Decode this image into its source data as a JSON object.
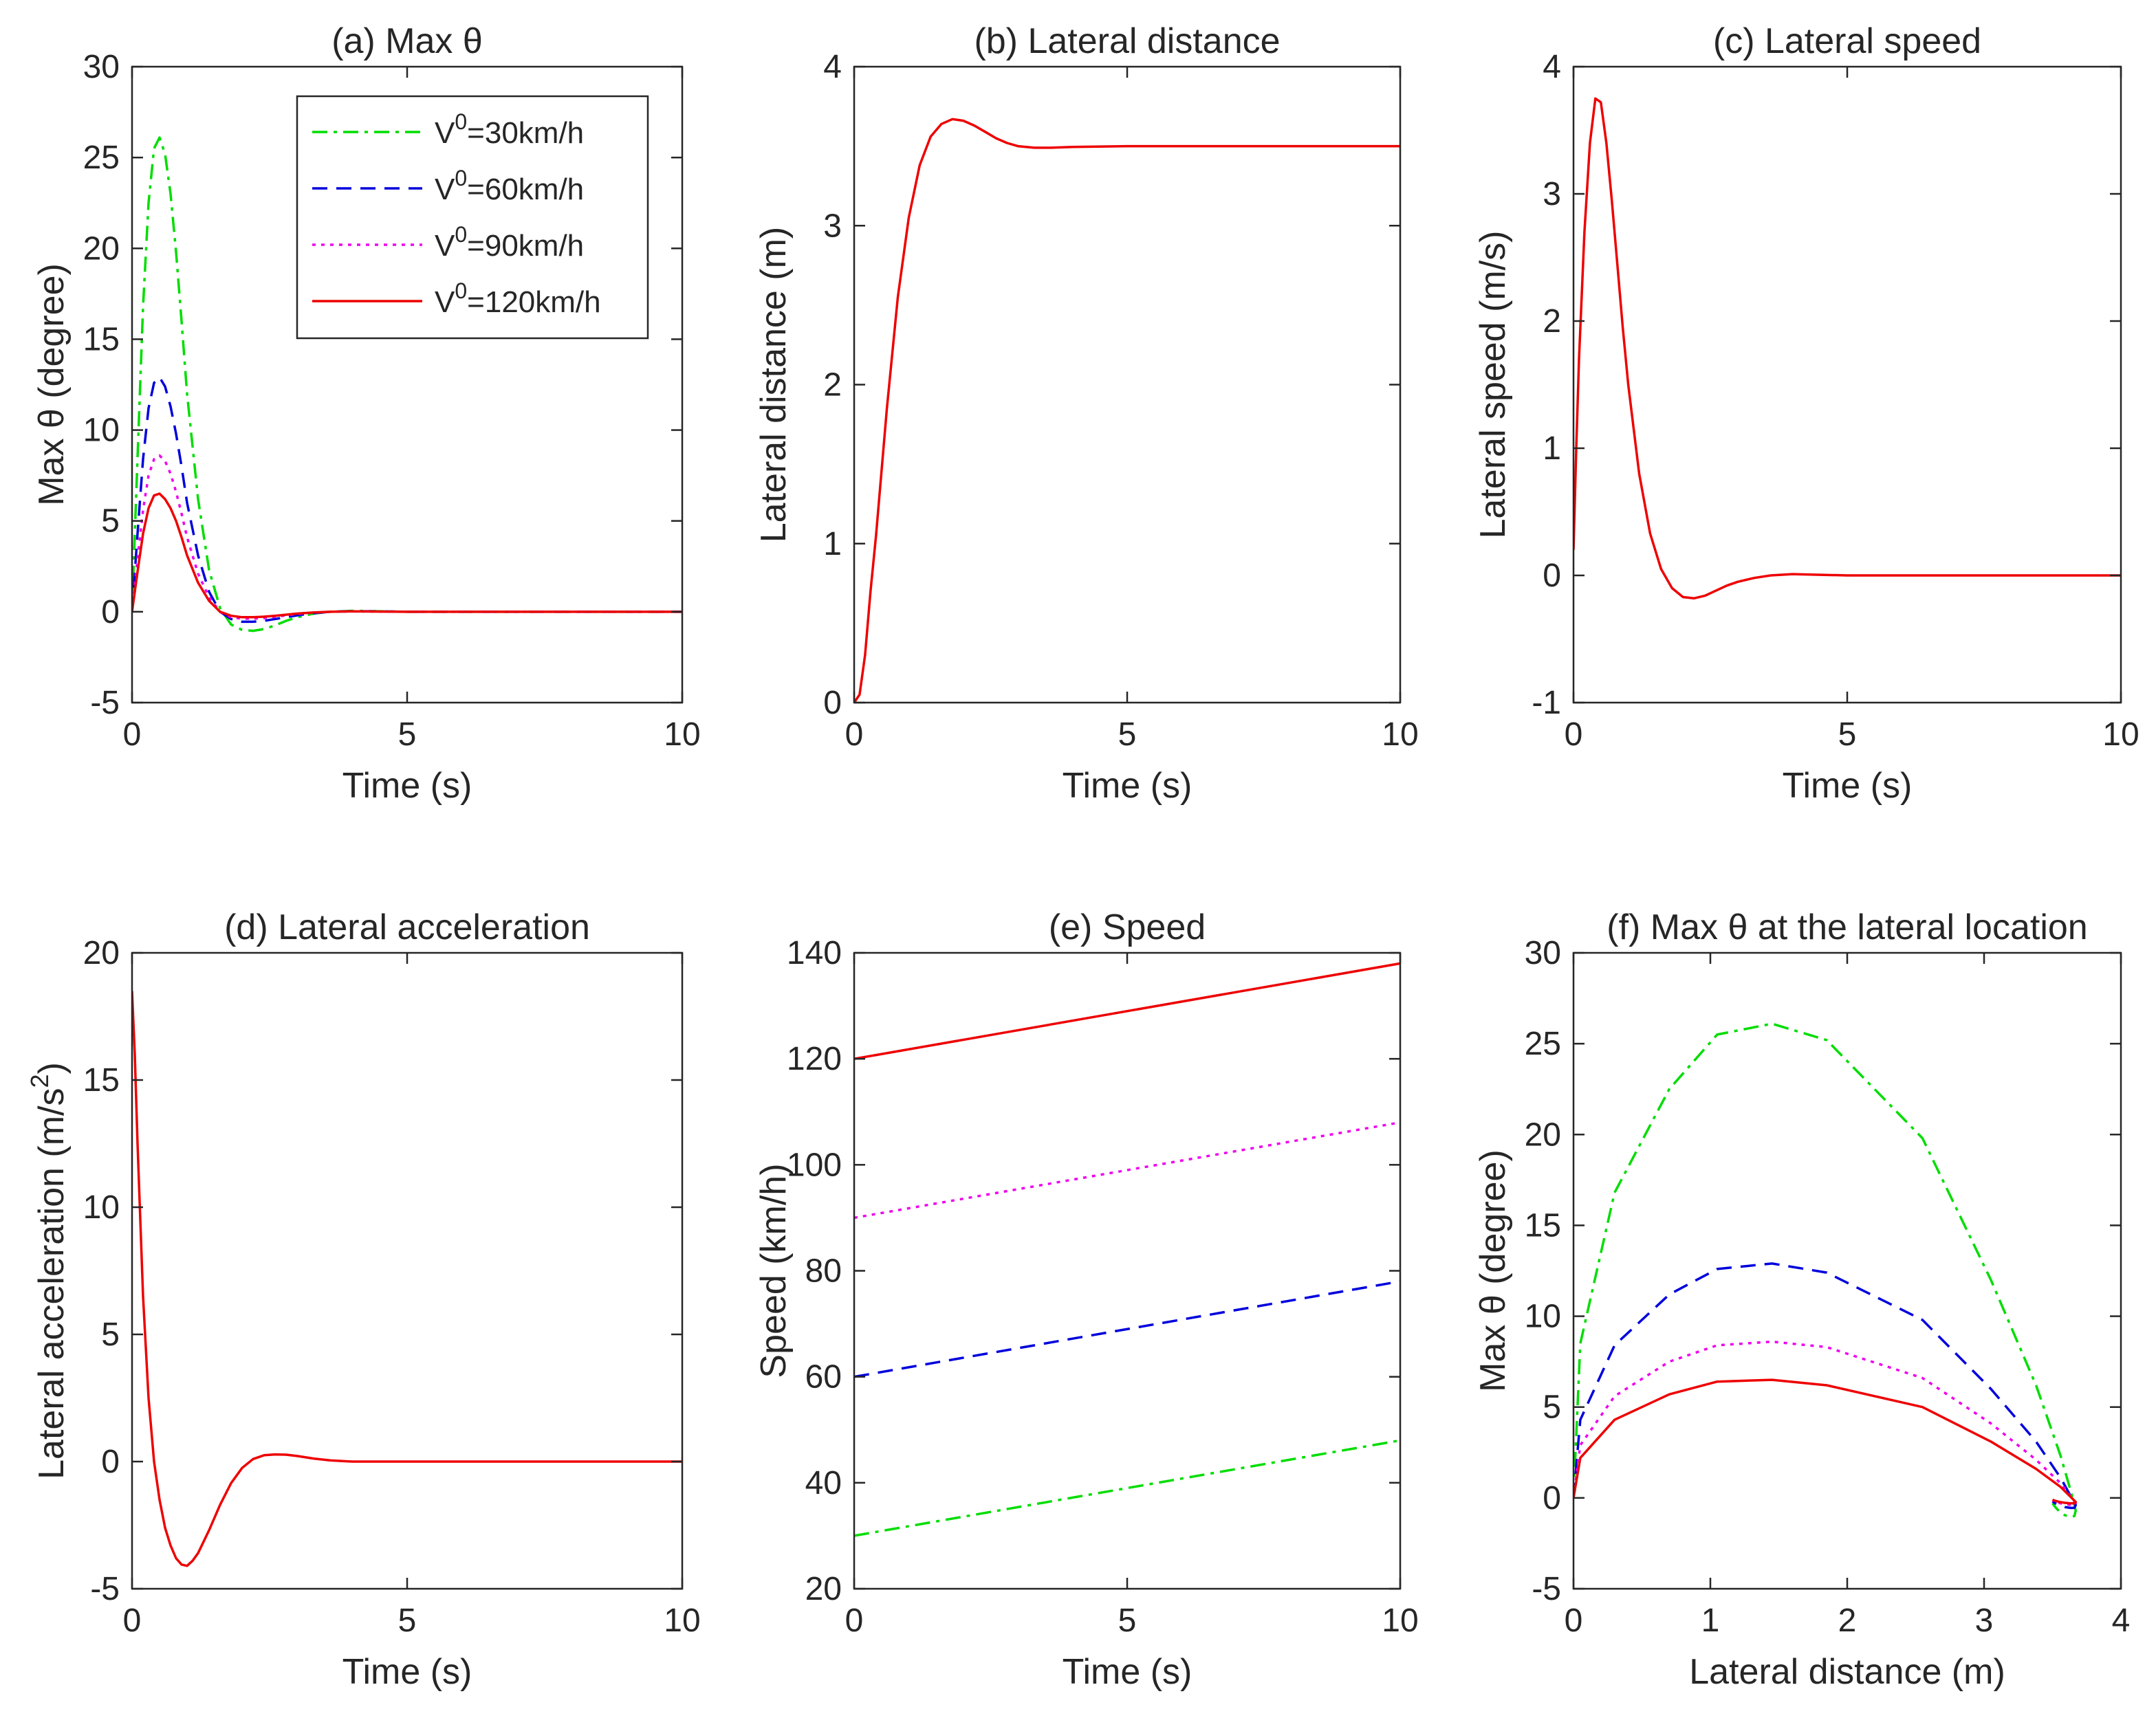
{
  "colors": {
    "v30": "#00dd00",
    "v60": "#0000dd",
    "v90": "#ee00ee",
    "v120": "#ee0000",
    "axes": "#262626"
  },
  "legend": {
    "entries": [
      {
        "series": "v30",
        "prefix": "V",
        "sup": "0",
        "suffix": "=30km/h"
      },
      {
        "series": "v60",
        "prefix": "V",
        "sup": "0",
        "suffix": "=60km/h"
      },
      {
        "series": "v90",
        "prefix": "V",
        "sup": "0",
        "suffix": "=90km/h"
      },
      {
        "series": "v120",
        "prefix": "V",
        "sup": "0",
        "suffix": "=120km/h"
      }
    ]
  },
  "chart_data": [
    {
      "id": "a",
      "type": "line",
      "title": "(a) Max θ",
      "xlabel": "Time (s)",
      "ylabel": "Max θ (degree)",
      "xlim": [
        0,
        10
      ],
      "ylim": [
        -5,
        30
      ],
      "xticks": [
        0,
        5,
        10
      ],
      "yticks": [
        -5,
        0,
        5,
        10,
        15,
        20,
        25,
        30
      ],
      "grid": false,
      "legend": "top-right",
      "series": [
        {
          "key": "v30",
          "style": "dashdot",
          "x": [
            0,
            0.1,
            0.2,
            0.3,
            0.4,
            0.5,
            0.6,
            0.7,
            0.8,
            0.9,
            1.0,
            1.2,
            1.4,
            1.6,
            1.8,
            2.0,
            2.2,
            2.4,
            2.6,
            2.8,
            3.0,
            3.3,
            3.6,
            4.0,
            4.5,
            5,
            6,
            7,
            8,
            9,
            10
          ],
          "y": [
            0,
            8.5,
            16.8,
            22.5,
            25.5,
            26.1,
            25.2,
            23.0,
            19.8,
            16.0,
            12.0,
            6.2,
            2.3,
            0.2,
            -0.7,
            -1.0,
            -1.05,
            -0.95,
            -0.75,
            -0.5,
            -0.3,
            -0.1,
            0,
            0.05,
            0.03,
            0,
            0,
            0,
            0,
            0,
            0
          ]
        },
        {
          "key": "v60",
          "style": "dashed",
          "x": [
            0,
            0.1,
            0.2,
            0.3,
            0.4,
            0.5,
            0.6,
            0.7,
            0.8,
            0.9,
            1.0,
            1.2,
            1.4,
            1.6,
            1.8,
            2.0,
            2.2,
            2.4,
            2.6,
            2.8,
            3.0,
            3.3,
            3.6,
            4.0,
            4.5,
            5,
            6,
            7,
            8,
            9,
            10
          ],
          "y": [
            0,
            4.3,
            8.4,
            11.2,
            12.6,
            12.9,
            12.4,
            11.3,
            9.8,
            8.0,
            6.0,
            3.1,
            1.1,
            0.0,
            -0.4,
            -0.55,
            -0.55,
            -0.5,
            -0.4,
            -0.3,
            -0.2,
            -0.08,
            0,
            0.03,
            0.02,
            0,
            0,
            0,
            0,
            0,
            0
          ]
        },
        {
          "key": "v90",
          "style": "dotted",
          "x": [
            0,
            0.1,
            0.2,
            0.3,
            0.4,
            0.5,
            0.6,
            0.7,
            0.8,
            0.9,
            1.0,
            1.2,
            1.4,
            1.6,
            1.8,
            2.0,
            2.2,
            2.4,
            2.6,
            2.8,
            3.0,
            3.3,
            3.6,
            4.0,
            4.5,
            5,
            6,
            7,
            8,
            9,
            10
          ],
          "y": [
            0,
            2.9,
            5.6,
            7.5,
            8.4,
            8.6,
            8.3,
            7.6,
            6.6,
            5.4,
            4.1,
            2.1,
            0.8,
            0.0,
            -0.3,
            -0.38,
            -0.38,
            -0.35,
            -0.28,
            -0.2,
            -0.13,
            -0.05,
            0,
            0.02,
            0.01,
            0,
            0,
            0,
            0,
            0,
            0
          ]
        },
        {
          "key": "v120",
          "style": "solid",
          "x": [
            0,
            0.1,
            0.2,
            0.3,
            0.4,
            0.5,
            0.6,
            0.7,
            0.8,
            0.9,
            1.0,
            1.2,
            1.4,
            1.6,
            1.8,
            2.0,
            2.2,
            2.4,
            2.6,
            2.8,
            3.0,
            3.3,
            3.6,
            4.0,
            4.5,
            5,
            6,
            7,
            8,
            9,
            10
          ],
          "y": [
            0,
            2.2,
            4.3,
            5.7,
            6.4,
            6.5,
            6.2,
            5.7,
            5.0,
            4.1,
            3.1,
            1.6,
            0.6,
            0.0,
            -0.22,
            -0.3,
            -0.3,
            -0.27,
            -0.22,
            -0.16,
            -0.1,
            -0.04,
            0,
            0.02,
            0.01,
            0,
            0,
            0,
            0,
            0,
            0
          ]
        }
      ]
    },
    {
      "id": "b",
      "type": "line",
      "title": "(b) Lateral distance",
      "xlabel": "Time (s)",
      "ylabel": "Lateral distance (m)",
      "xlim": [
        0,
        10
      ],
      "ylim": [
        0,
        4
      ],
      "xticks": [
        0,
        5,
        10
      ],
      "yticks": [
        0,
        1,
        2,
        3,
        4
      ],
      "grid": false,
      "series": [
        {
          "key": "v120",
          "style": "solid",
          "x": [
            0,
            0.1,
            0.2,
            0.3,
            0.4,
            0.5,
            0.6,
            0.8,
            1.0,
            1.2,
            1.4,
            1.6,
            1.8,
            2.0,
            2.2,
            2.4,
            2.6,
            2.8,
            3.0,
            3.3,
            3.6,
            4.0,
            5,
            6,
            8,
            10
          ],
          "y": [
            0,
            0.05,
            0.3,
            0.7,
            1.05,
            1.45,
            1.85,
            2.55,
            3.05,
            3.38,
            3.56,
            3.64,
            3.67,
            3.66,
            3.63,
            3.59,
            3.55,
            3.52,
            3.5,
            3.49,
            3.49,
            3.495,
            3.5,
            3.5,
            3.5,
            3.5
          ]
        }
      ]
    },
    {
      "id": "c",
      "type": "line",
      "title": "(c) Lateral speed",
      "xlabel": "Time (s)",
      "ylabel": "Lateral speed (m/s)",
      "xlim": [
        0,
        10
      ],
      "ylim": [
        -1,
        4
      ],
      "xticks": [
        0,
        5,
        10
      ],
      "yticks": [
        -1,
        0,
        1,
        2,
        3,
        4
      ],
      "grid": false,
      "series": [
        {
          "key": "v120",
          "style": "solid",
          "x": [
            0,
            0.05,
            0.1,
            0.2,
            0.3,
            0.4,
            0.5,
            0.6,
            0.7,
            0.8,
            0.9,
            1.0,
            1.2,
            1.4,
            1.6,
            1.8,
            2.0,
            2.2,
            2.4,
            2.6,
            2.8,
            3.0,
            3.3,
            3.6,
            4.0,
            5,
            6,
            8,
            10
          ],
          "y": [
            0.2,
            1.0,
            1.7,
            2.7,
            3.4,
            3.75,
            3.72,
            3.4,
            2.95,
            2.45,
            1.95,
            1.5,
            0.8,
            0.33,
            0.05,
            -0.1,
            -0.17,
            -0.18,
            -0.16,
            -0.12,
            -0.08,
            -0.05,
            -0.02,
            0,
            0.01,
            0,
            0,
            0,
            0
          ]
        }
      ]
    },
    {
      "id": "d",
      "type": "line",
      "title": "(d) Lateral acceleration",
      "xlabel": "Time (s)",
      "ylabel": "Lateral acceleration (m/s",
      "ylabel_sup": "2",
      "ylabel_suffix": ")",
      "xlim": [
        0,
        10
      ],
      "ylim": [
        -5,
        20
      ],
      "xticks": [
        0,
        5,
        10
      ],
      "yticks": [
        -5,
        0,
        5,
        10,
        15,
        20
      ],
      "grid": false,
      "series": [
        {
          "key": "v120",
          "style": "solid",
          "x": [
            0,
            0.05,
            0.1,
            0.2,
            0.3,
            0.4,
            0.5,
            0.6,
            0.7,
            0.8,
            0.9,
            1.0,
            1.1,
            1.2,
            1.4,
            1.6,
            1.8,
            2.0,
            2.2,
            2.4,
            2.6,
            2.8,
            3.0,
            3.3,
            3.6,
            4.0,
            4.5,
            5,
            6,
            8,
            10
          ],
          "y": [
            18.5,
            16.0,
            12.5,
            6.5,
            2.5,
            0.0,
            -1.5,
            -2.6,
            -3.3,
            -3.8,
            -4.05,
            -4.1,
            -3.9,
            -3.6,
            -2.7,
            -1.7,
            -0.85,
            -0.25,
            0.1,
            0.25,
            0.28,
            0.27,
            0.22,
            0.12,
            0.05,
            0.0,
            0,
            0,
            0,
            0,
            0
          ]
        }
      ]
    },
    {
      "id": "e",
      "type": "line",
      "title": "(e) Speed",
      "xlabel": "Time (s)",
      "ylabel": "Speed (km/h)",
      "xlim": [
        0,
        10
      ],
      "ylim": [
        20,
        140
      ],
      "xticks": [
        0,
        5,
        10
      ],
      "yticks": [
        20,
        40,
        60,
        80,
        100,
        120,
        140
      ],
      "grid": false,
      "series": [
        {
          "key": "v30",
          "style": "dashdot",
          "x": [
            0,
            10
          ],
          "y": [
            30,
            48
          ]
        },
        {
          "key": "v60",
          "style": "dashed",
          "x": [
            0,
            10
          ],
          "y": [
            60,
            78
          ]
        },
        {
          "key": "v90",
          "style": "dotted",
          "x": [
            0,
            10
          ],
          "y": [
            90,
            108
          ]
        },
        {
          "key": "v120",
          "style": "solid",
          "x": [
            0,
            10
          ],
          "y": [
            120,
            138
          ]
        }
      ]
    },
    {
      "id": "f",
      "type": "line",
      "title": "(f) Max θ at the lateral location",
      "xlabel": "Lateral distance (m)",
      "ylabel": "Max θ (degree)",
      "xlim": [
        0,
        4
      ],
      "ylim": [
        -5,
        30
      ],
      "xticks": [
        0,
        1,
        2,
        3,
        4
      ],
      "yticks": [
        -5,
        0,
        5,
        10,
        15,
        20,
        25,
        30
      ],
      "grid": false,
      "series": [
        {
          "key": "v30",
          "style": "dashdot",
          "x": [
            0,
            0.05,
            0.3,
            0.7,
            1.05,
            1.45,
            1.85,
            2.55,
            3.05,
            3.38,
            3.56,
            3.64,
            3.67,
            3.66,
            3.63,
            3.59,
            3.55,
            3.52,
            3.5
          ],
          "y": [
            0,
            8.5,
            16.8,
            22.5,
            25.5,
            26.1,
            25.2,
            19.8,
            12.0,
            6.2,
            2.3,
            0.2,
            -0.7,
            -1.0,
            -1.05,
            -0.95,
            -0.75,
            -0.5,
            -0.3
          ]
        },
        {
          "key": "v60",
          "style": "dashed",
          "x": [
            0,
            0.05,
            0.3,
            0.7,
            1.05,
            1.45,
            1.85,
            2.55,
            3.05,
            3.38,
            3.56,
            3.64,
            3.67,
            3.66,
            3.63,
            3.59,
            3.55,
            3.52,
            3.5
          ],
          "y": [
            0,
            4.3,
            8.4,
            11.2,
            12.6,
            12.9,
            12.4,
            9.8,
            6.0,
            3.1,
            1.1,
            0.0,
            -0.4,
            -0.55,
            -0.55,
            -0.5,
            -0.4,
            -0.3,
            -0.2
          ]
        },
        {
          "key": "v90",
          "style": "dotted",
          "x": [
            0,
            0.05,
            0.3,
            0.7,
            1.05,
            1.45,
            1.85,
            2.55,
            3.05,
            3.38,
            3.56,
            3.64,
            3.67,
            3.66,
            3.63,
            3.59,
            3.55,
            3.52,
            3.5
          ],
          "y": [
            0,
            2.9,
            5.6,
            7.5,
            8.4,
            8.6,
            8.3,
            6.6,
            4.1,
            2.1,
            0.8,
            0.0,
            -0.3,
            -0.38,
            -0.38,
            -0.35,
            -0.28,
            -0.2,
            -0.13
          ]
        },
        {
          "key": "v120",
          "style": "solid",
          "x": [
            0,
            0.05,
            0.3,
            0.7,
            1.05,
            1.45,
            1.85,
            2.55,
            3.05,
            3.38,
            3.56,
            3.64,
            3.67,
            3.66,
            3.63,
            3.59,
            3.55,
            3.52,
            3.5
          ],
          "y": [
            0,
            2.2,
            4.3,
            5.7,
            6.4,
            6.5,
            6.2,
            5.0,
            3.1,
            1.6,
            0.6,
            0.0,
            -0.22,
            -0.3,
            -0.3,
            -0.27,
            -0.22,
            -0.16,
            -0.1
          ]
        }
      ]
    }
  ]
}
